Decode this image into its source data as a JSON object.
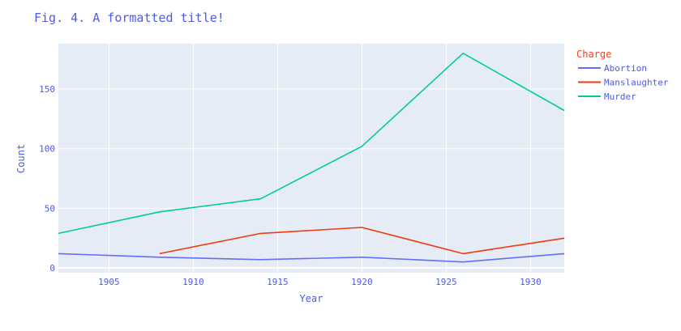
{
  "chart_data": {
    "type": "line",
    "title": "Fig. 4. A formatted title!",
    "xlabel": "Year",
    "ylabel": "Count",
    "legend_title": "Charge",
    "legend_position": "right",
    "grid": true,
    "xlim": [
      1902,
      1932
    ],
    "ylim": [
      -4,
      188
    ],
    "x_ticks": [
      1905,
      1910,
      1915,
      1920,
      1925,
      1930
    ],
    "y_ticks": [
      0,
      50,
      100,
      150
    ],
    "colors": {
      "title": "#4d5ae6",
      "axis_text": "#4d5ae6",
      "legend_title": "#ff3b1f",
      "plot_bg": "#e5ecf6",
      "grid": "#ffffff"
    },
    "series": [
      {
        "name": "Abortion",
        "color": "#636efa",
        "x": [
          1902,
          1908,
          1914,
          1920,
          1926,
          1932
        ],
        "values": [
          12,
          9,
          7,
          9,
          5,
          12
        ]
      },
      {
        "name": "Manslaughter",
        "color": "#ef3b0e",
        "x": [
          1908,
          1914,
          1920,
          1926,
          1932
        ],
        "values": [
          12,
          29,
          34,
          12,
          25
        ]
      },
      {
        "name": "Murder",
        "color": "#00cc96",
        "x": [
          1902,
          1908,
          1914,
          1920,
          1926,
          1932
        ],
        "values": [
          29,
          47,
          58,
          102,
          180,
          132
        ]
      }
    ]
  }
}
